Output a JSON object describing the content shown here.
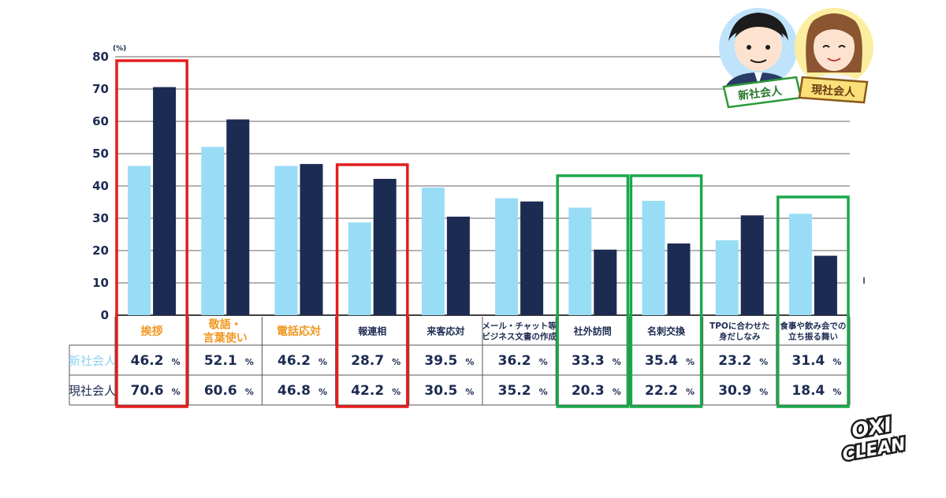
{
  "chart_data": {
    "type": "bar",
    "ylim": [
      0,
      80
    ],
    "yticks": [
      "0",
      "10",
      "20",
      "30",
      "40",
      "50",
      "60",
      "70",
      "80"
    ],
    "unit_label": "(%)",
    "categories": [
      [
        "挨拶"
      ],
      [
        "敬語・",
        "言葉使い"
      ],
      [
        "電話応対"
      ],
      [
        "報連相"
      ],
      [
        "来客応対"
      ],
      [
        "メール・チャット等",
        "ビジネス文書の作成"
      ],
      [
        "社外訪問"
      ],
      [
        "名刺交換"
      ],
      [
        "TPOに合わせた",
        "身だしなみ"
      ],
      [
        "食事や飲み会での",
        "立ち振る舞い"
      ]
    ],
    "category_highlight": [
      true,
      true,
      true,
      false,
      false,
      false,
      false,
      false,
      false,
      false
    ],
    "series": [
      {
        "name": "新社会人",
        "color": "#99dcf6",
        "label_color": "#8fd3f2",
        "values": [
          46.2,
          52.1,
          46.2,
          28.7,
          39.5,
          36.2,
          33.3,
          35.4,
          23.2,
          31.4
        ],
        "labels": [
          "46.2",
          "52.1",
          "46.2",
          "28.7",
          "39.5",
          "36.2",
          "33.3",
          "35.4",
          "23.2",
          "31.4"
        ]
      },
      {
        "name": "現社会人",
        "color": "#1c2b52",
        "label_color": "#1c2b52",
        "values": [
          70.6,
          60.6,
          46.8,
          42.2,
          30.5,
          35.2,
          20.3,
          22.2,
          30.9,
          18.4
        ],
        "labels": [
          "70.6",
          "60.6",
          "46.8",
          "42.2",
          "30.5",
          "35.2",
          "20.3",
          "22.2",
          "30.9",
          "18.4"
        ]
      }
    ],
    "percent_sign": "%",
    "highlight_boxes": [
      {
        "color": "#e31d1d",
        "categories": [
          0
        ]
      },
      {
        "color": "#e31d1d",
        "categories": [
          3
        ]
      },
      {
        "color": "#1aa84a",
        "categories": [
          6
        ]
      },
      {
        "color": "#1aa84a",
        "categories": [
          7
        ]
      },
      {
        "color": "#1aa84a",
        "categories": [
          9
        ]
      }
    ],
    "colors": {
      "highlight_category_text": "#f0961e",
      "category_text": "#1c2b52",
      "grid": "#666666",
      "axis": "#000000"
    }
  },
  "badges": {
    "new_worker": "新社会人",
    "current_worker": "現社会人"
  },
  "logo": {
    "line1": "OXI",
    "line2": "CLEAN"
  }
}
